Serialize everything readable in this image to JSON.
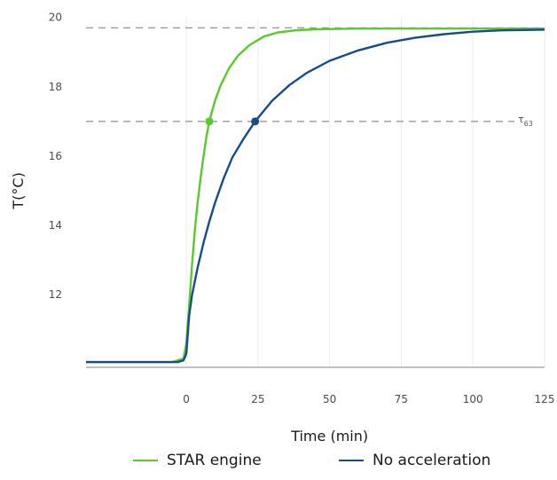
{
  "chart_data": {
    "type": "line",
    "xlabel": "Time (min)",
    "ylabel": "T(°C)",
    "xlim": [
      -35,
      125
    ],
    "ylim": [
      9.9,
      20.3
    ],
    "x_ticks": [
      0,
      25,
      50,
      75,
      100,
      125
    ],
    "y_ticks": [
      12,
      14,
      16,
      18,
      20
    ],
    "grid": "vertical",
    "legend_position": "bottom",
    "series": [
      {
        "name": "STAR engine",
        "color": "#5ac92c",
        "values": [
          [
            -35,
            10.05
          ],
          [
            -5,
            10.05
          ],
          [
            -1,
            10.15
          ],
          [
            0,
            10.6
          ],
          [
            1,
            11.7
          ],
          [
            2,
            12.9
          ],
          [
            3,
            13.9
          ],
          [
            4,
            14.7
          ],
          [
            5,
            15.4
          ],
          [
            6,
            16.0
          ],
          [
            7,
            16.55
          ],
          [
            8,
            17.0
          ],
          [
            10,
            17.6
          ],
          [
            12,
            18.05
          ],
          [
            15,
            18.55
          ],
          [
            18,
            18.9
          ],
          [
            22,
            19.2
          ],
          [
            27,
            19.45
          ],
          [
            32,
            19.57
          ],
          [
            38,
            19.63
          ],
          [
            45,
            19.66
          ],
          [
            60,
            19.68
          ],
          [
            80,
            19.68
          ],
          [
            100,
            19.68
          ],
          [
            125,
            19.68
          ]
        ]
      },
      {
        "name": "No acceleration",
        "color": "#174b8c",
        "values": [
          [
            -35,
            10.05
          ],
          [
            -3,
            10.05
          ],
          [
            -1,
            10.1
          ],
          [
            0,
            10.3
          ],
          [
            1,
            11.4
          ],
          [
            2,
            12.0
          ],
          [
            4,
            12.8
          ],
          [
            6,
            13.5
          ],
          [
            8,
            14.1
          ],
          [
            10,
            14.65
          ],
          [
            13,
            15.35
          ],
          [
            16,
            15.95
          ],
          [
            20,
            16.5
          ],
          [
            24,
            17.0
          ],
          [
            30,
            17.6
          ],
          [
            36,
            18.05
          ],
          [
            42,
            18.4
          ],
          [
            50,
            18.75
          ],
          [
            60,
            19.05
          ],
          [
            70,
            19.27
          ],
          [
            80,
            19.42
          ],
          [
            90,
            19.52
          ],
          [
            100,
            19.59
          ],
          [
            110,
            19.63
          ],
          [
            125,
            19.65
          ]
        ]
      }
    ],
    "reference_lines": [
      {
        "y": 19.7,
        "label": ""
      },
      {
        "y": 17.0,
        "label": "τ63"
      }
    ],
    "markers": [
      {
        "series": "STAR engine",
        "x": 8,
        "y": 17.0
      },
      {
        "series": "No acceleration",
        "x": 24,
        "y": 17.0
      }
    ],
    "annotation_label": {
      "main": "τ",
      "sub": "63"
    }
  }
}
